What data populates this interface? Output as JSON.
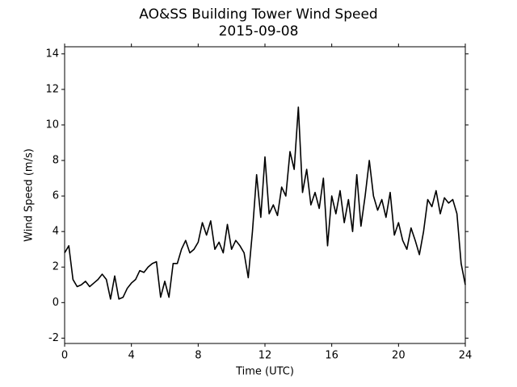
{
  "chart_data": {
    "type": "line",
    "title": "AO&SS Building Tower Wind Speed",
    "subtitle": "2015-09-08",
    "x_label": "Time (UTC)",
    "y_label": "Wind Speed (m/s)",
    "x": [
      0,
      0.25,
      0.5,
      0.75,
      1,
      1.25,
      1.5,
      1.75,
      2,
      2.25,
      2.5,
      2.75,
      3,
      3.25,
      3.5,
      3.75,
      4,
      4.25,
      4.5,
      4.75,
      5,
      5.25,
      5.5,
      5.75,
      6,
      6.25,
      6.5,
      6.75,
      7,
      7.25,
      7.5,
      7.75,
      8,
      8.25,
      8.5,
      8.75,
      9,
      9.25,
      9.5,
      9.75,
      10,
      10.25,
      10.5,
      10.75,
      11,
      11.25,
      11.5,
      11.75,
      12,
      12.25,
      12.5,
      12.75,
      13,
      13.25,
      13.5,
      13.75,
      14,
      14.25,
      14.5,
      14.75,
      15,
      15.25,
      15.5,
      15.75,
      16,
      16.25,
      16.5,
      16.75,
      17,
      17.25,
      17.5,
      17.75,
      18,
      18.25,
      18.5,
      18.75,
      19,
      19.25,
      19.5,
      19.75,
      20,
      20.25,
      20.5,
      20.75,
      21,
      21.25,
      21.5,
      21.75,
      22,
      22.25,
      22.5,
      22.75,
      23,
      23.25,
      23.5,
      23.75,
      24
    ],
    "series": [
      {
        "name": "Wind Speed",
        "color": "#000000",
        "values": [
          2.8,
          3.2,
          1.3,
          0.9,
          1.0,
          1.2,
          0.9,
          1.1,
          1.3,
          1.6,
          1.3,
          0.2,
          1.5,
          0.2,
          0.3,
          0.8,
          1.1,
          1.3,
          1.8,
          1.7,
          2.0,
          2.2,
          2.3,
          0.3,
          1.2,
          0.3,
          2.2,
          2.2,
          3.0,
          3.5,
          2.8,
          3.0,
          3.4,
          4.5,
          3.8,
          4.6,
          3.0,
          3.4,
          2.8,
          4.4,
          3.0,
          3.5,
          3.2,
          2.8,
          1.4,
          4.0,
          7.2,
          4.8,
          8.2,
          5.0,
          5.5,
          4.9,
          6.5,
          6.0,
          8.5,
          7.5,
          11.0,
          6.2,
          7.5,
          5.5,
          6.2,
          5.3,
          7.0,
          3.2,
          6.0,
          5.0,
          6.3,
          4.5,
          5.8,
          4.0,
          7.2,
          4.3,
          6.0,
          8.0,
          6.0,
          5.2,
          5.8,
          4.8,
          6.2,
          3.8,
          4.5,
          3.5,
          3.0,
          4.2,
          3.5,
          2.7,
          4.0,
          5.8,
          5.4,
          6.3,
          5.0,
          5.9,
          5.6,
          5.8,
          5.0,
          2.2,
          1.0
        ]
      }
    ],
    "xlim": [
      0,
      24
    ],
    "xticks": [
      0,
      4,
      8,
      12,
      16,
      20,
      24
    ],
    "ylim": [
      -2.3,
      14.4
    ],
    "yticks": [
      -2,
      0,
      2,
      4,
      6,
      8,
      10,
      12,
      14
    ],
    "grid": false
  }
}
